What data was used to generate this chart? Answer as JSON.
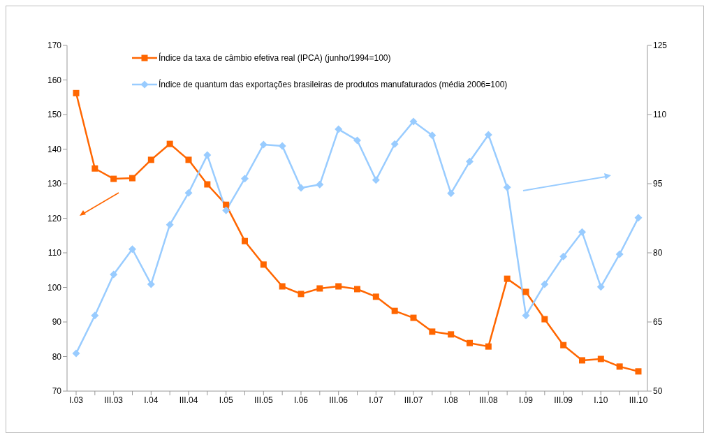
{
  "chart_data": {
    "type": "line",
    "categories": [
      "I.03",
      null,
      "III.03",
      null,
      "I.04",
      null,
      "III.04",
      null,
      "I.05",
      null,
      "III.05",
      null,
      "I.06",
      null,
      "III.06",
      null,
      "I.07",
      null,
      "III.07",
      null,
      "I.08",
      null,
      "III.08",
      null,
      "I.09",
      null,
      "III.09",
      null,
      "I.10",
      null,
      "III.10"
    ],
    "series": [
      {
        "name": "Índice da taxa de câmbio efetiva real (IPCA) (junho/1994=100)",
        "color": "#ff6600",
        "marker": "square",
        "values": [
          156.2,
          134.4,
          131.4,
          131.6,
          136.9,
          141.5,
          136.9,
          129.8,
          123.9,
          113.4,
          106.6,
          100.3,
          98.1,
          99.7,
          100.3,
          99.5,
          97.3,
          93.2,
          91.2,
          87.2,
          86.4,
          83.9,
          82.9,
          102.5,
          98.7,
          90.8,
          83.3,
          78.9,
          79.3,
          77.1,
          75.7
        ]
      },
      {
        "name": "Índice de quantum das exportações brasileiras de produtos manufaturados (média 2006=100)",
        "color": "#99ccff",
        "marker": "diamond",
        "axis": "y2",
        "values": [
          58.2,
          66.4,
          75.3,
          80.8,
          73.2,
          86.1,
          93.0,
          101.2,
          89.2,
          96.1,
          103.5,
          103.2,
          94.1,
          94.8,
          106.8,
          104.4,
          95.8,
          103.6,
          108.5,
          105.5,
          92.9,
          99.8,
          105.6,
          94.2,
          66.4,
          73.2,
          79.2,
          84.5,
          72.6,
          79.7,
          87.6
        ]
      }
    ],
    "ylim": [
      70,
      170
    ],
    "yticks": [
      70,
      80,
      90,
      100,
      110,
      120,
      130,
      140,
      150,
      160,
      170
    ],
    "y2lim": [
      50,
      125
    ],
    "y2ticks": [
      50,
      65,
      80,
      95,
      110,
      125
    ],
    "grid": false,
    "legend": "top",
    "line_style": "solid"
  }
}
